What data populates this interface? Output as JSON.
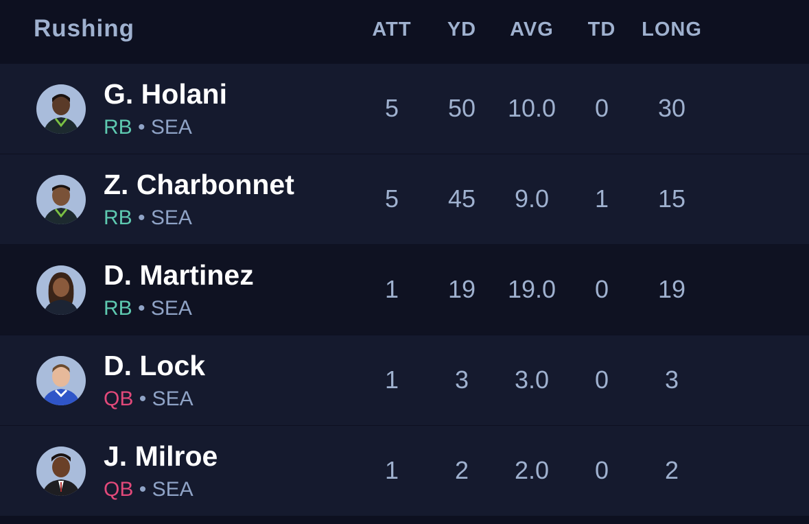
{
  "header": {
    "title": "Rushing",
    "columns": [
      "ATT",
      "YD",
      "AVG",
      "TD",
      "LONG"
    ]
  },
  "colors": {
    "rb": "#5ec9b0",
    "qb": "#e2497a",
    "text_muted": "#9fb1cf",
    "row_a": "#151a2e",
    "row_b": "#0f1222"
  },
  "players": [
    {
      "name": "G. Holani",
      "position": "RB",
      "team": "SEA",
      "separator": "•",
      "stats": [
        "5",
        "50",
        "10.0",
        "0",
        "30"
      ],
      "avatar_icon": "player-headshot"
    },
    {
      "name": "Z. Charbonnet",
      "position": "RB",
      "team": "SEA",
      "separator": "•",
      "stats": [
        "5",
        "45",
        "9.0",
        "1",
        "15"
      ],
      "avatar_icon": "player-headshot"
    },
    {
      "name": "D. Martinez",
      "position": "RB",
      "team": "SEA",
      "separator": "•",
      "stats": [
        "1",
        "19",
        "19.0",
        "0",
        "19"
      ],
      "avatar_icon": "player-headshot"
    },
    {
      "name": "D. Lock",
      "position": "QB",
      "team": "SEA",
      "separator": "•",
      "stats": [
        "1",
        "3",
        "3.0",
        "0",
        "3"
      ],
      "avatar_icon": "player-headshot"
    },
    {
      "name": "J. Milroe",
      "position": "QB",
      "team": "SEA",
      "separator": "•",
      "stats": [
        "1",
        "2",
        "2.0",
        "0",
        "2"
      ],
      "avatar_icon": "player-headshot"
    }
  ]
}
